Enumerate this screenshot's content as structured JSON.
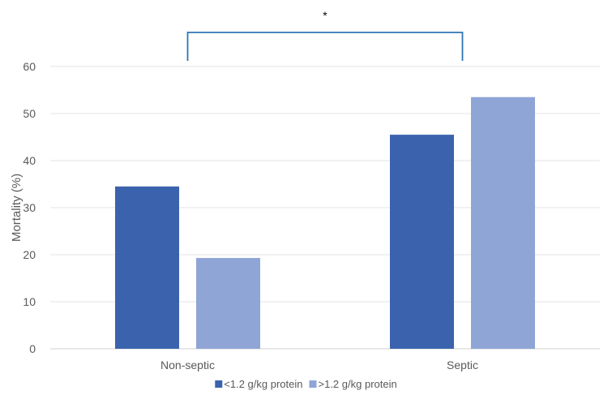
{
  "chart_data": {
    "type": "bar",
    "title": "",
    "xlabel": "",
    "ylabel": "Mortality (%)",
    "categories": [
      "Non-septic",
      "Septic"
    ],
    "series": [
      {
        "name": "<1.2 g/kg protein",
        "values": [
          34.5,
          45.5
        ],
        "color": "#3b62ad"
      },
      {
        "name": ">1.2 g/kg protein",
        "values": [
          19.3,
          53.5
        ],
        "color": "#8fa5d5"
      }
    ],
    "ylim": [
      0,
      60
    ],
    "yticks": [
      0,
      10,
      20,
      30,
      40,
      50,
      60
    ],
    "grid": true,
    "legend": "bottom",
    "annotations": [
      {
        "type": "significance-bracket",
        "between": [
          "Non-septic",
          "Septic"
        ],
        "label": "*",
        "color": "#2e75b6"
      }
    ]
  }
}
